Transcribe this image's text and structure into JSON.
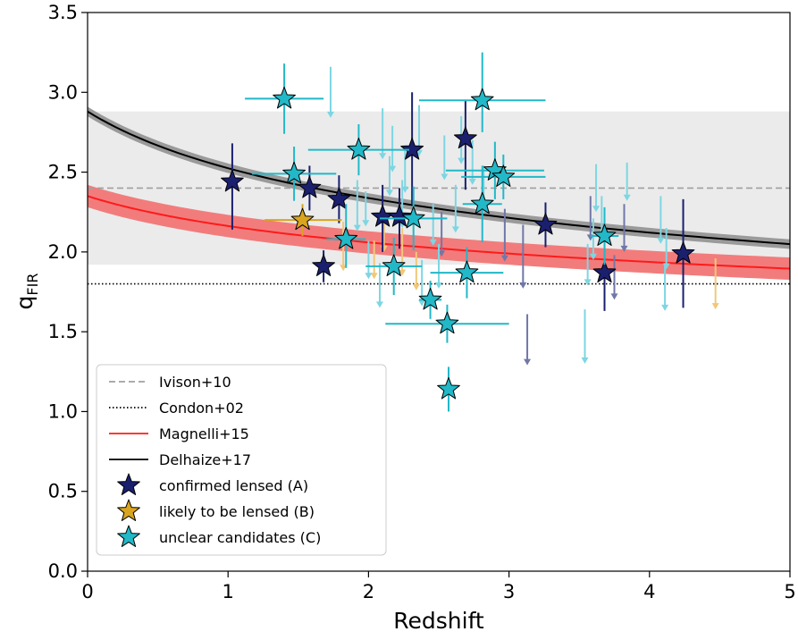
{
  "chart_data": {
    "type": "scatter",
    "xlabel": "Redshift",
    "ylabel": {
      "main": "q",
      "sub": "FIR"
    },
    "xlim": [
      0,
      5
    ],
    "ylim": [
      0,
      3.5
    ],
    "xticks": [
      {
        "v": 0,
        "label": "0"
      },
      {
        "v": 1,
        "label": "1"
      },
      {
        "v": 2,
        "label": "2"
      },
      {
        "v": 3,
        "label": "3"
      },
      {
        "v": 4,
        "label": "4"
      },
      {
        "v": 5,
        "label": "5"
      }
    ],
    "yticks": [
      {
        "v": 0,
        "label": "0.0"
      },
      {
        "v": 0.5,
        "label": "0.5"
      },
      {
        "v": 1.0,
        "label": "1.0"
      },
      {
        "v": 1.5,
        "label": "1.5"
      },
      {
        "v": 2.0,
        "label": "2.0"
      },
      {
        "v": 2.5,
        "label": "2.5"
      },
      {
        "v": 3.0,
        "label": "3.0"
      },
      {
        "v": 3.5,
        "label": "3.5"
      }
    ],
    "grid": false,
    "legend_position": "lower-left",
    "colors": {
      "A": "#1a1f6e",
      "A_arrow": "#7177a8",
      "B": "#d9a41e",
      "B_arrow": "#f0c878",
      "C": "#22b8c8",
      "C_arrow": "#7dd6e2",
      "magnelli": "#ff1a1a",
      "magnelli_band": "#f27c7c",
      "delhaize": "#000000",
      "delhaize_band": "#9a9a9a",
      "ivison": "#a0a0a0",
      "ivison_band": "#ebebeb",
      "condon": "#000000"
    },
    "reference_lines": [
      {
        "name": "Ivison+10",
        "type": "constant",
        "q": 2.4,
        "band": [
          1.92,
          2.88
        ],
        "style": "dashed"
      },
      {
        "name": "Condon+02",
        "type": "constant",
        "q": 1.8,
        "style": "dotted"
      },
      {
        "name": "Magnelli+15",
        "type": "power",
        "a": 2.35,
        "b": -0.12,
        "band_halfwidth": 0.07,
        "style": "solid"
      },
      {
        "name": "Delhaize+17",
        "type": "power",
        "a": 2.88,
        "b": -0.19,
        "band_halfwidth": 0.03,
        "style": "solid"
      }
    ],
    "legend": [
      {
        "label": "Ivison+10",
        "kind": "line",
        "key": "ivison",
        "dash": "7 4"
      },
      {
        "label": "Condon+02",
        "kind": "line",
        "key": "condon",
        "dash": "1.5 2.5"
      },
      {
        "label": "Magnelli+15",
        "kind": "line",
        "key": "magnelli",
        "dash": ""
      },
      {
        "label": "Delhaize+17",
        "kind": "line",
        "key": "delhaize",
        "dash": ""
      },
      {
        "label": "confirmed lensed (A)",
        "kind": "star",
        "key": "A"
      },
      {
        "label": "likely to be lensed (B)",
        "kind": "star",
        "key": "B"
      },
      {
        "label": "unclear candidates (C)",
        "kind": "star",
        "key": "C"
      }
    ],
    "series": [
      {
        "class": "A",
        "points": [
          {
            "x": 1.03,
            "y": 2.44,
            "xerr": 0,
            "yerr": [
              0.3,
              0.24
            ]
          },
          {
            "x": 1.58,
            "y": 2.4,
            "xerr": 0,
            "yerr": [
              0.14,
              0.14
            ]
          },
          {
            "x": 1.68,
            "y": 1.91,
            "xerr": 0,
            "yerr": [
              0.1,
              0.1
            ]
          },
          {
            "x": 1.79,
            "y": 2.33,
            "xerr": 0,
            "yerr": [
              0.15,
              0.15
            ]
          },
          {
            "x": 2.1,
            "y": 2.22,
            "xerr": 0,
            "yerr": [
              0.22,
              0.2
            ]
          },
          {
            "x": 2.22,
            "y": 2.22,
            "xerr": 0,
            "yerr": [
              0.2,
              0.18
            ]
          },
          {
            "x": 2.31,
            "y": 2.64,
            "xerr": 0,
            "yerr": [
              0.34,
              0.36
            ]
          },
          {
            "x": 2.69,
            "y": 2.71,
            "xerr": 0,
            "yerr": [
              0.32,
              0.24
            ]
          },
          {
            "x": 3.26,
            "y": 2.17,
            "xerr": 0,
            "yerr": [
              0.14,
              0.14
            ]
          },
          {
            "x": 3.68,
            "y": 1.87,
            "xerr": 0,
            "yerr": [
              0.24,
              0.18
            ]
          },
          {
            "x": 4.24,
            "y": 1.99,
            "xerr": 0,
            "yerr": [
              0.34,
              0.34
            ]
          }
        ],
        "upper_limits": [
          {
            "x": 2.52,
            "y": 2.25,
            "len": 0.28
          },
          {
            "x": 2.97,
            "y": 2.27,
            "len": 0.33
          },
          {
            "x": 3.1,
            "y": 2.17,
            "len": 0.4
          },
          {
            "x": 3.13,
            "y": 1.61,
            "len": 0.32
          },
          {
            "x": 3.58,
            "y": 2.35,
            "len": 0.28
          },
          {
            "x": 3.75,
            "y": 1.98,
            "len": 0.28
          },
          {
            "x": 3.82,
            "y": 2.3,
            "len": 0.3
          }
        ]
      },
      {
        "class": "B",
        "points": [
          {
            "x": 1.53,
            "y": 2.2,
            "xerr": [
              0.27,
              0.28
            ],
            "yerr": [
              0.1,
              0.1
            ]
          }
        ],
        "upper_limits": [
          {
            "x": 1.82,
            "y": 2.19,
            "len": 0.31
          },
          {
            "x": 2.04,
            "y": 2.07,
            "len": 0.24
          },
          {
            "x": 2.11,
            "y": 2.26,
            "len": 0.26
          },
          {
            "x": 2.24,
            "y": 2.15,
            "len": 0.3
          },
          {
            "x": 2.34,
            "y": 2.0,
            "len": 0.24
          },
          {
            "x": 4.47,
            "y": 1.96,
            "len": 0.32
          }
        ]
      },
      {
        "class": "C",
        "points": [
          {
            "x": 1.4,
            "y": 2.96,
            "xerr": [
              0.28,
              0.28
            ],
            "yerr": [
              0.22,
              0.22
            ]
          },
          {
            "x": 1.47,
            "y": 2.49,
            "xerr": [
              0.3,
              0.3
            ],
            "yerr": [
              0.17,
              0.17
            ]
          },
          {
            "x": 1.84,
            "y": 2.08,
            "xerr": [
              0.14,
              0.14
            ],
            "yerr": [
              0.18,
              0.22
            ]
          },
          {
            "x": 1.93,
            "y": 2.64,
            "xerr": [
              0.36,
              0.36
            ],
            "yerr": [
              0.16,
              0.16
            ]
          },
          {
            "x": 2.18,
            "y": 1.91,
            "xerr": [
              0.2,
              0.2
            ],
            "yerr": [
              0.18,
              0.18
            ]
          },
          {
            "x": 2.32,
            "y": 2.21,
            "xerr": [
              0.24,
              0.24
            ],
            "yerr": [
              0.2,
              0.2
            ]
          },
          {
            "x": 2.44,
            "y": 1.7,
            "xerr": [
              0.08,
              0.08
            ],
            "yerr": [
              0.12,
              0.12
            ]
          },
          {
            "x": 2.56,
            "y": 1.55,
            "xerr": [
              0.44,
              0.44
            ],
            "yerr": [
              0.12,
              0.12
            ]
          },
          {
            "x": 2.57,
            "y": 1.14,
            "xerr": 0,
            "yerr": [
              0.14,
              0.14
            ]
          },
          {
            "x": 2.7,
            "y": 1.87,
            "xerr": [
              0.26,
              0.26
            ],
            "yerr": [
              0.16,
              0.16
            ]
          },
          {
            "x": 2.81,
            "y": 2.95,
            "xerr": [
              0.45,
              0.45
            ],
            "yerr": [
              0.2,
              0.3
            ]
          },
          {
            "x": 2.81,
            "y": 2.3,
            "xerr": [
              0.14,
              0.14
            ],
            "yerr": [
              0.24,
              0.24
            ]
          },
          {
            "x": 2.9,
            "y": 2.51,
            "xerr": [
              0.35,
              0.35
            ],
            "yerr": [
              0.18,
              0.18
            ]
          },
          {
            "x": 2.96,
            "y": 2.47,
            "xerr": [
              0.3,
              0.3
            ],
            "yerr": [
              0.14,
              0.14
            ]
          },
          {
            "x": 3.68,
            "y": 2.1,
            "xerr": [
              0.1,
              0.1
            ],
            "yerr": [
              0.18,
              0.18
            ]
          }
        ],
        "upper_limits": [
          {
            "x": 1.73,
            "y": 3.16,
            "len": 0.32
          },
          {
            "x": 1.92,
            "y": 2.45,
            "len": 0.32
          },
          {
            "x": 1.98,
            "y": 2.38,
            "len": 0.22
          },
          {
            "x": 2.0,
            "y": 2.07,
            "len": 0.24
          },
          {
            "x": 2.08,
            "y": 1.93,
            "len": 0.28
          },
          {
            "x": 2.1,
            "y": 2.9,
            "len": 0.32
          },
          {
            "x": 2.15,
            "y": 2.6,
            "len": 0.25
          },
          {
            "x": 2.17,
            "y": 2.79,
            "len": 0.29
          },
          {
            "x": 2.24,
            "y": 2.45,
            "len": 0.3
          },
          {
            "x": 2.26,
            "y": 2.65,
            "len": 0.28
          },
          {
            "x": 2.36,
            "y": 2.92,
            "len": 0.32
          },
          {
            "x": 2.38,
            "y": 1.95,
            "len": 0.29
          },
          {
            "x": 2.46,
            "y": 2.3,
            "len": 0.26
          },
          {
            "x": 2.5,
            "y": 2.05,
            "len": 0.28
          },
          {
            "x": 2.54,
            "y": 2.73,
            "len": 0.28
          },
          {
            "x": 2.62,
            "y": 2.42,
            "len": 0.3
          },
          {
            "x": 2.66,
            "y": 2.85,
            "len": 0.3
          },
          {
            "x": 2.74,
            "y": 2.7,
            "len": 0.28
          },
          {
            "x": 2.82,
            "y": 2.54,
            "len": 0.3
          },
          {
            "x": 3.54,
            "y": 1.64,
            "len": 0.34
          },
          {
            "x": 3.56,
            "y": 2.05,
            "len": 0.26
          },
          {
            "x": 3.6,
            "y": 2.21,
            "len": 0.26
          },
          {
            "x": 3.62,
            "y": 2.55,
            "len": 0.3
          },
          {
            "x": 3.66,
            "y": 2.35,
            "len": 0.28
          },
          {
            "x": 3.84,
            "y": 2.56,
            "len": 0.24
          },
          {
            "x": 4.08,
            "y": 2.35,
            "len": 0.3
          },
          {
            "x": 4.11,
            "y": 1.93,
            "len": 0.3
          },
          {
            "x": 4.12,
            "y": 2.15,
            "len": 0.26
          }
        ]
      }
    ]
  }
}
